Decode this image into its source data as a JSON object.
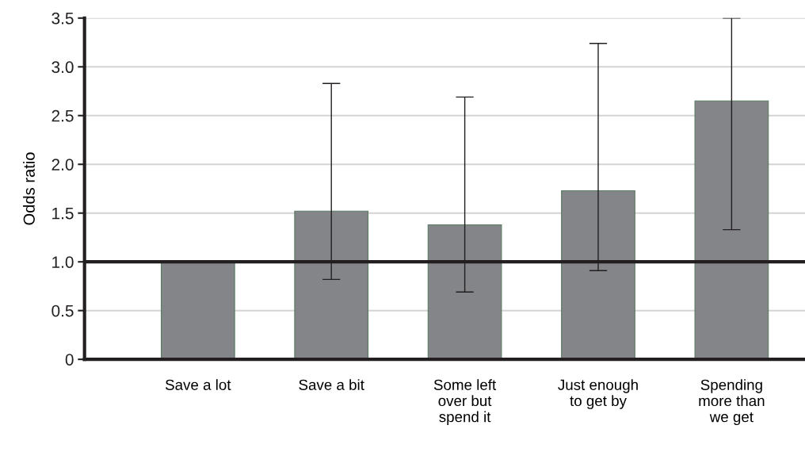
{
  "chart_data": {
    "type": "bar",
    "ylabel": "Odds ratio",
    "categories": [
      "Save a lot",
      "Save a bit",
      "Some left\nover but\nspend it",
      "Just enough\nto get by",
      "Spending\nmore than\nwe get"
    ],
    "values": [
      1.0,
      1.52,
      1.38,
      1.73,
      2.65
    ],
    "errors": [
      null,
      [
        0.82,
        2.83
      ],
      [
        0.69,
        2.69
      ],
      [
        0.91,
        3.24
      ],
      [
        1.33,
        3.5
      ]
    ],
    "color": "#848588",
    "ylim": [
      0,
      3.5
    ],
    "yticks": [
      0,
      {
        "value": 0.5,
        "label": "0.5"
      },
      {
        "value": 1.0,
        "label": "1.0"
      },
      {
        "value": 1.5,
        "label": "1.5"
      },
      {
        "value": 2.0,
        "label": "2.0"
      },
      {
        "value": 2.5,
        "label": "2.5"
      },
      {
        "value": 3.0,
        "label": "3.0"
      },
      {
        "value": 3.5,
        "label": "3.5"
      }
    ],
    "grid": "y",
    "ref_lines": [
      {
        "axis": "y",
        "value": 1.0,
        "color": "#231f20"
      }
    ]
  }
}
